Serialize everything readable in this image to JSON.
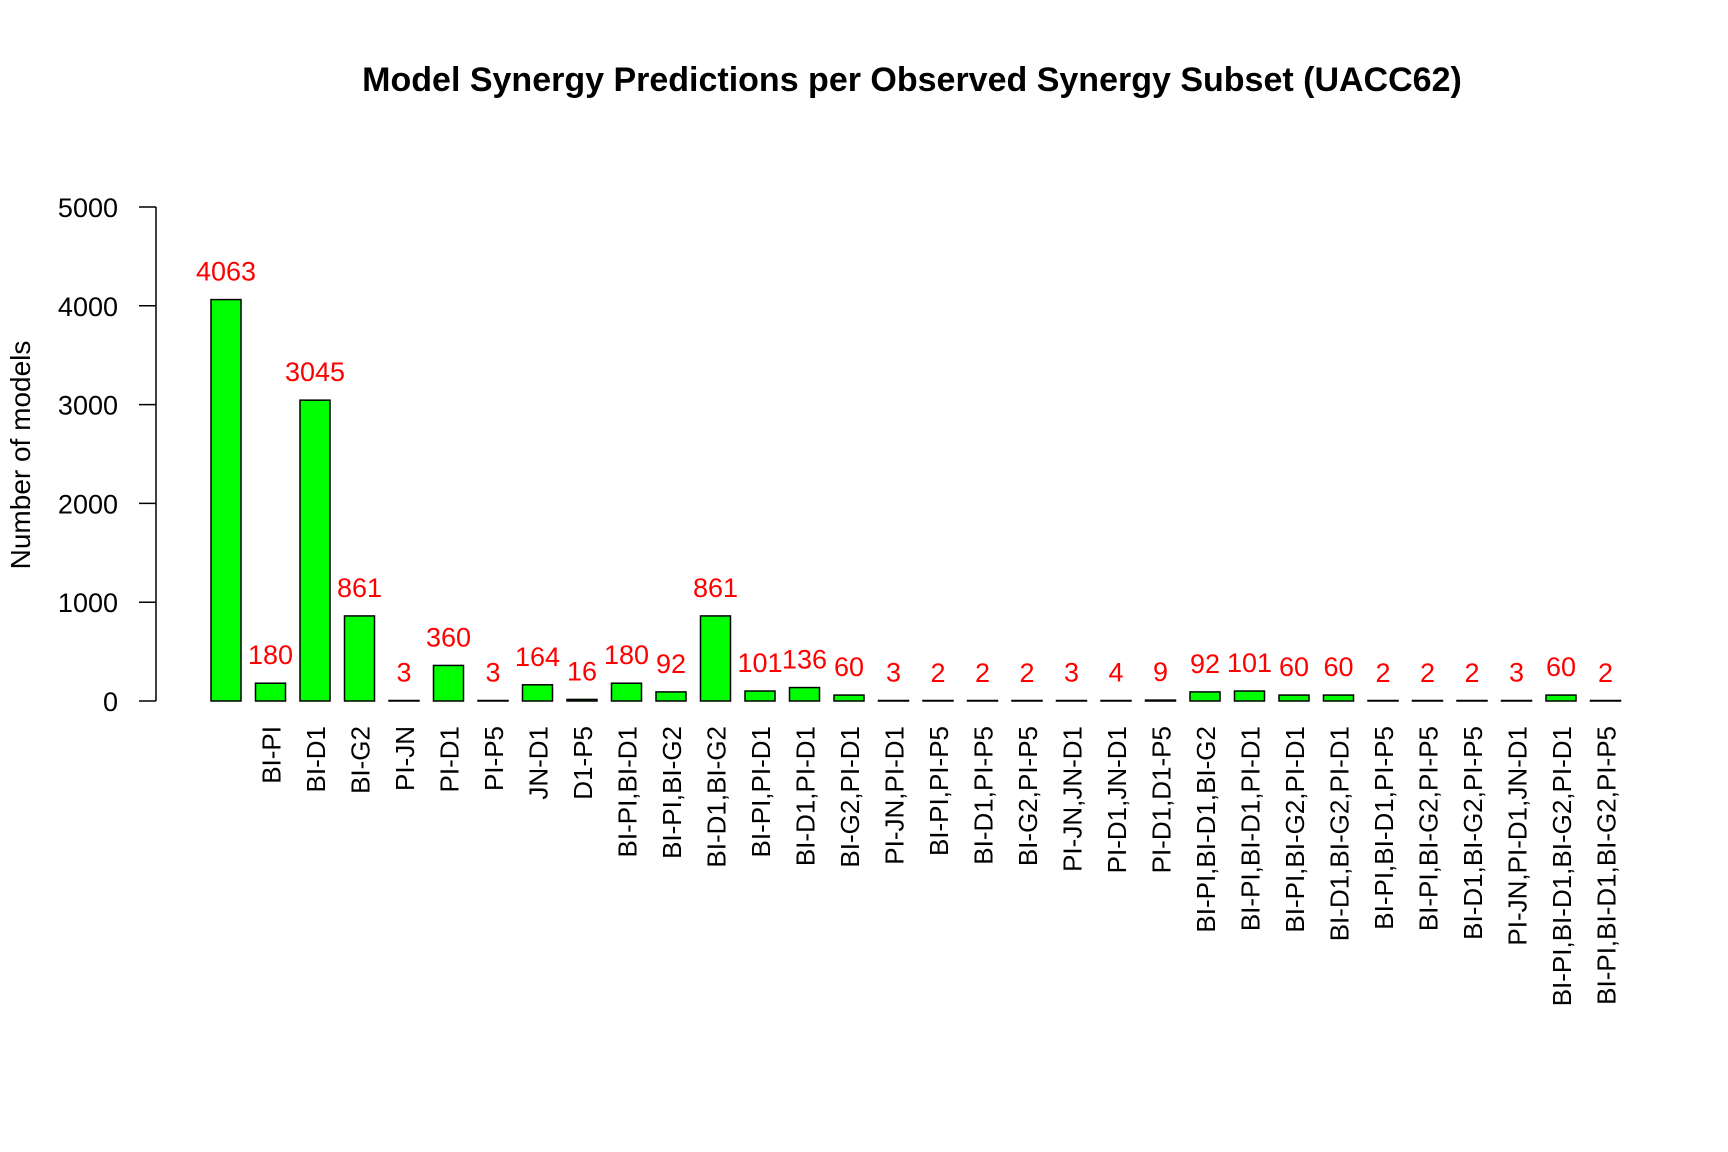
{
  "chart_data": {
    "type": "bar",
    "title": "Model Synergy Predictions per Observed Synergy Subset (UACC62)",
    "xlabel": "",
    "ylabel": "Number of models",
    "ylim": [
      0,
      5000
    ],
    "yticks": [
      0,
      1000,
      2000,
      3000,
      4000,
      5000
    ],
    "grid": false,
    "categories": [
      "",
      "BI-PI",
      "BI-D1",
      "BI-G2",
      "PI-JN",
      "PI-D1",
      "PI-P5",
      "JN-D1",
      "D1-P5",
      "BI-PI,BI-D1",
      "BI-PI,BI-G2",
      "BI-D1,BI-G2",
      "BI-PI,PI-D1",
      "BI-D1,PI-D1",
      "BI-G2,PI-D1",
      "PI-JN,PI-D1",
      "BI-PI,PI-P5",
      "BI-D1,PI-P5",
      "BI-G2,PI-P5",
      "PI-JN,JN-D1",
      "PI-D1,JN-D1",
      "PI-D1,D1-P5",
      "BI-PI,BI-D1,BI-G2",
      "BI-PI,BI-D1,PI-D1",
      "BI-PI,BI-G2,PI-D1",
      "BI-D1,BI-G2,PI-D1",
      "BI-PI,BI-D1,PI-P5",
      "BI-PI,BI-G2,PI-P5",
      "BI-D1,BI-G2,PI-P5",
      "PI-JN,PI-D1,JN-D1",
      "BI-PI,BI-D1,BI-G2,PI-D1",
      "BI-PI,BI-D1,BI-G2,PI-P5"
    ],
    "values": [
      4063,
      180,
      3045,
      861,
      3,
      360,
      3,
      164,
      16,
      180,
      92,
      861,
      101,
      136,
      60,
      3,
      2,
      2,
      2,
      3,
      4,
      9,
      92,
      101,
      60,
      60,
      2,
      2,
      2,
      3,
      60,
      2
    ],
    "bar_color": "#00ff00",
    "bar_border": "#000000",
    "label_color": "#ff0000"
  }
}
